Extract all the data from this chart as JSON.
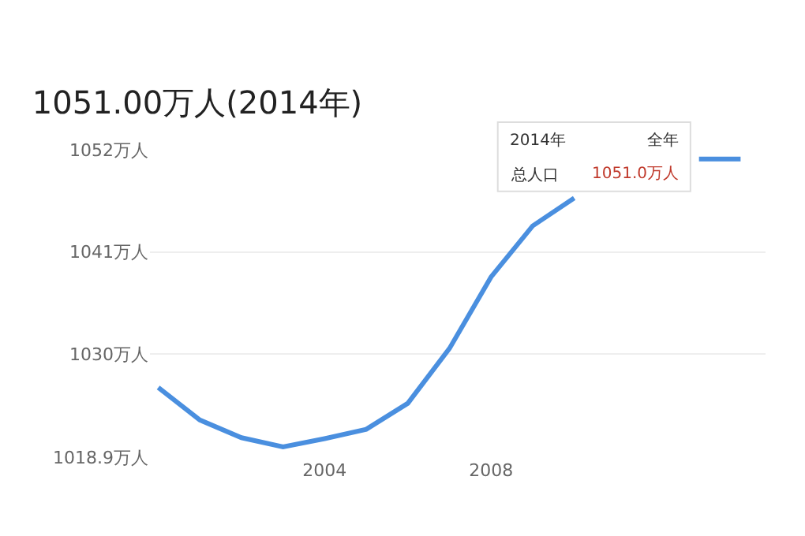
{
  "chart_data": {
    "type": "line",
    "title": "1051.00万人(2014年)",
    "x": [
      2000,
      2001,
      2002,
      2003,
      2004,
      2005,
      2006,
      2007,
      2008,
      2009,
      2010,
      2011,
      2012,
      2013,
      2014
    ],
    "series": [
      {
        "color": "#4a8fdf",
        "values": [
          1026.4,
          1022.9,
          1021.0,
          1020.0,
          1020.9,
          1021.9,
          1024.7,
          1030.6,
          1038.3,
          1043.8,
          1046.8,
          null,
          null,
          1051.0,
          1051.0
        ]
      }
    ],
    "xlim": [
      1999.8,
      2014.6
    ],
    "xticks": [
      2004,
      2008
    ],
    "ylim": [
      1018.9,
      1052
    ],
    "yticks": [
      {
        "value": 1018.9,
        "label": "1018.9万人"
      },
      {
        "value": 1030,
        "label": "1030万人"
      },
      {
        "value": 1041,
        "label": "1041万人"
      },
      {
        "value": 1052,
        "label": "1052万人"
      }
    ],
    "grid": "y",
    "marker": "none",
    "line_style": "solid",
    "annotations": [
      "2014年",
      "全年",
      "总人口",
      "1051.0万人"
    ]
  }
}
